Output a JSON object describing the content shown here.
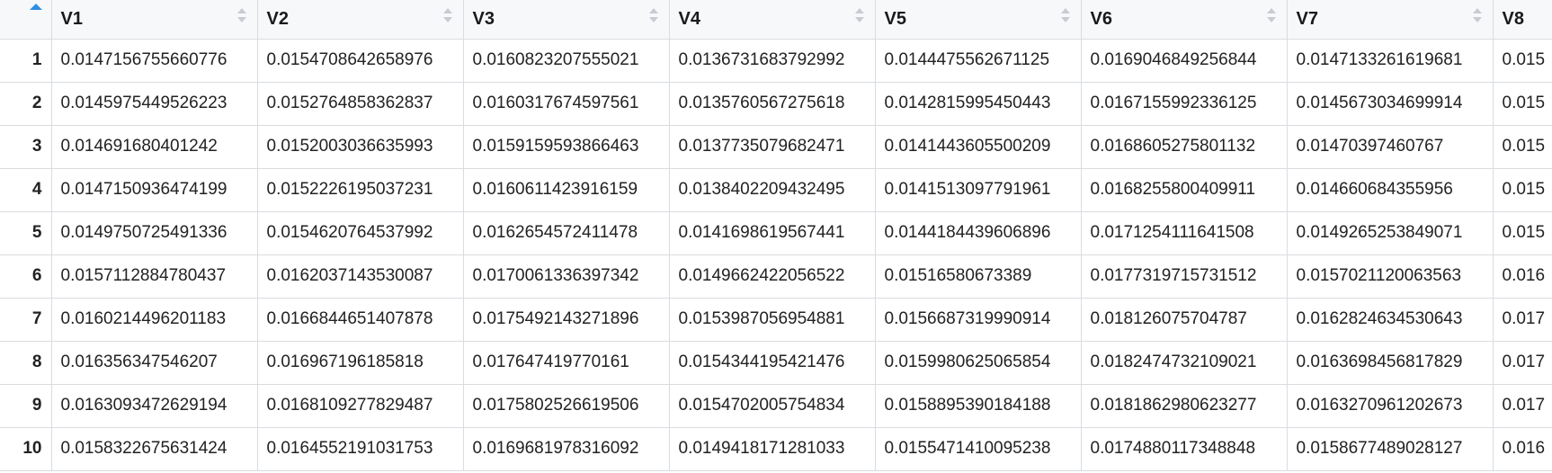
{
  "table": {
    "columns": [
      "V1",
      "V2",
      "V3",
      "V4",
      "V5",
      "V6",
      "V7",
      "V8"
    ],
    "sort_indicator_icon": "sort-ascending-icon",
    "rows": [
      {
        "index": "1",
        "cells": [
          "0.0147156755660776",
          "0.0154708642658976",
          "0.0160823207555021",
          "0.0136731683792992",
          "0.0144475562671125",
          "0.0169046849256844",
          "0.0147133261619681",
          "0.015"
        ]
      },
      {
        "index": "2",
        "cells": [
          "0.0145975449526223",
          "0.0152764858362837",
          "0.0160317674597561",
          "0.0135760567275618",
          "0.0142815995450443",
          "0.0167155992336125",
          "0.0145673034699914",
          "0.015"
        ]
      },
      {
        "index": "3",
        "cells": [
          "0.014691680401242",
          "0.0152003036635993",
          "0.0159159593866463",
          "0.0137735079682471",
          "0.0141443605500209",
          "0.0168605275801132",
          "0.01470397460767",
          "0.015"
        ]
      },
      {
        "index": "4",
        "cells": [
          "0.0147150936474199",
          "0.0152226195037231",
          "0.0160611423916159",
          "0.0138402209432495",
          "0.0141513097791961",
          "0.0168255800409911",
          "0.014660684355956",
          "0.015"
        ]
      },
      {
        "index": "5",
        "cells": [
          "0.0149750725491336",
          "0.0154620764537992",
          "0.0162654572411478",
          "0.0141698619567441",
          "0.0144184439606896",
          "0.0171254111641508",
          "0.0149265253849071",
          "0.015"
        ]
      },
      {
        "index": "6",
        "cells": [
          "0.0157112884780437",
          "0.0162037143530087",
          "0.0170061336397342",
          "0.0149662422056522",
          "0.01516580673389",
          "0.0177319715731512",
          "0.0157021120063563",
          "0.016"
        ]
      },
      {
        "index": "7",
        "cells": [
          "0.0160214496201183",
          "0.0166844651407878",
          "0.0175492143271896",
          "0.0153987056954881",
          "0.0156687319990914",
          "0.018126075704787",
          "0.0162824634530643",
          "0.017"
        ]
      },
      {
        "index": "8",
        "cells": [
          "0.016356347546207",
          "0.016967196185818",
          "0.017647419770161",
          "0.0154344195421476",
          "0.0159980625065854",
          "0.0182474732109021",
          "0.0163698456817829",
          "0.017"
        ]
      },
      {
        "index": "9",
        "cells": [
          "0.0163093472629194",
          "0.0168109277829487",
          "0.0175802526619506",
          "0.0154702005754834",
          "0.0158895390184188",
          "0.0181862980623277",
          "0.0163270961202673",
          "0.017"
        ]
      },
      {
        "index": "10",
        "cells": [
          "0.0158322675631424",
          "0.0164552191031753",
          "0.0169681978316092",
          "0.0149418171281033",
          "0.0155471410095238",
          "0.0174880117348848",
          "0.0158677489028127",
          "0.016"
        ]
      }
    ]
  }
}
